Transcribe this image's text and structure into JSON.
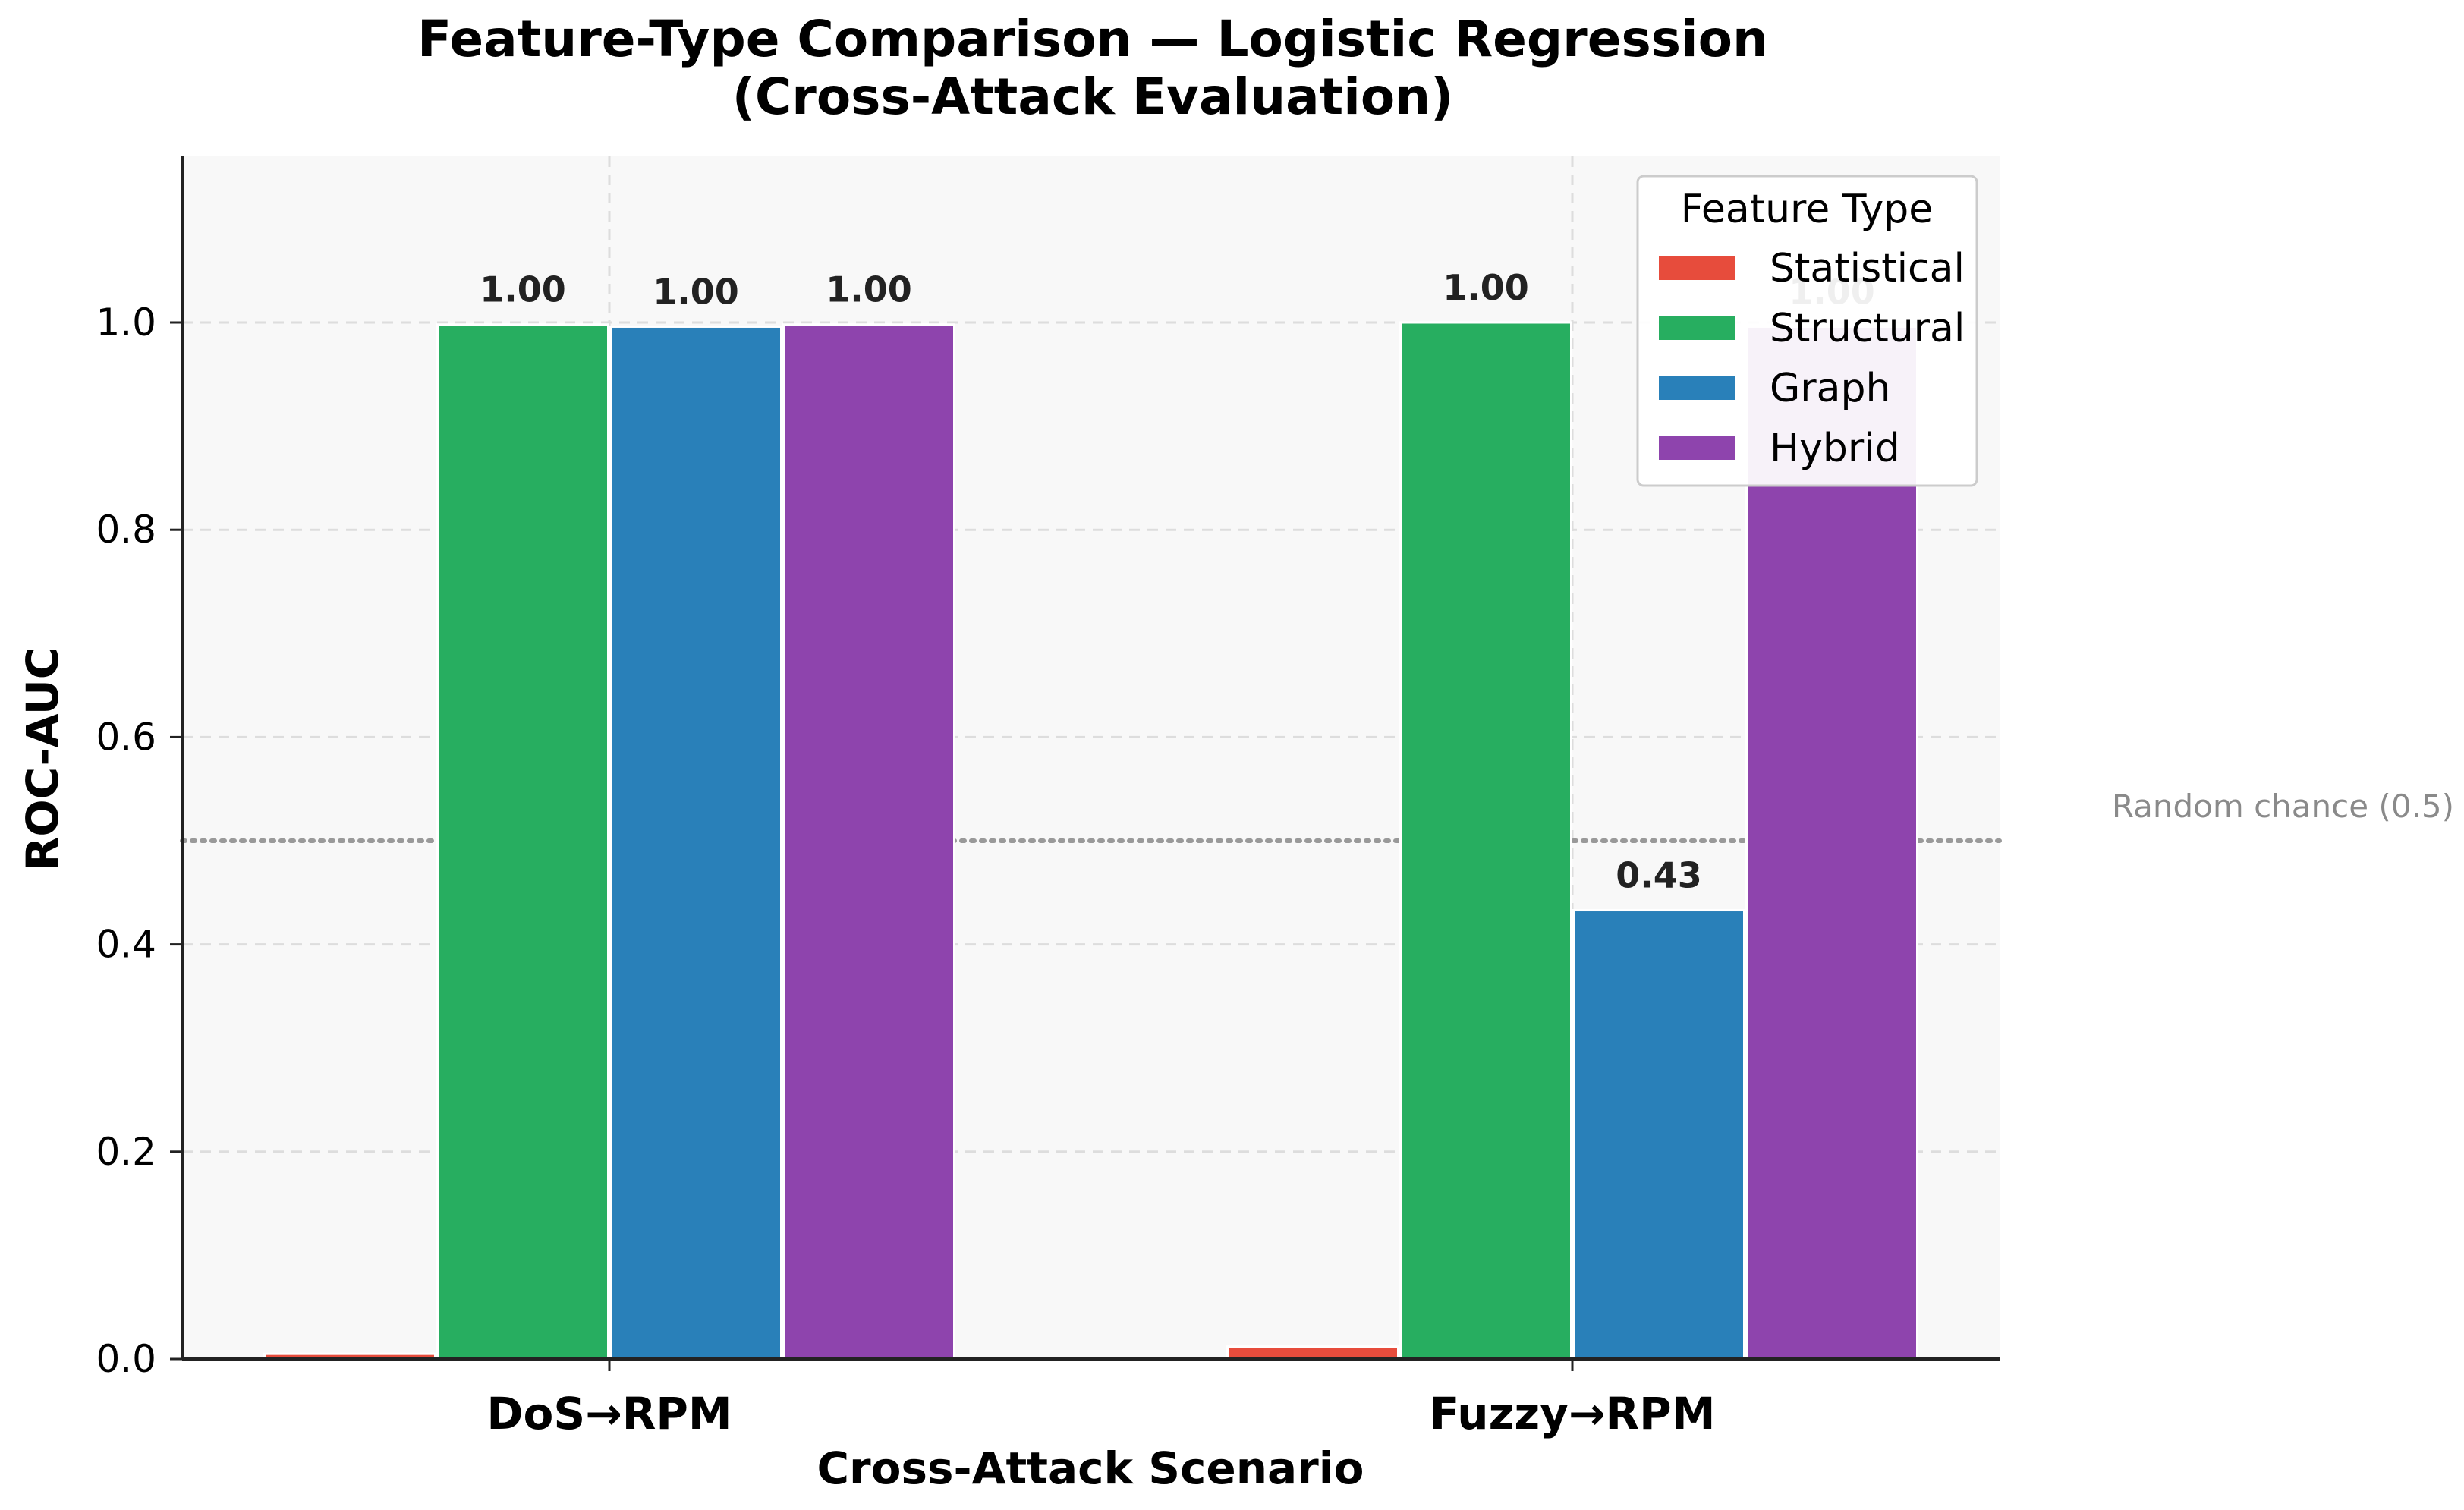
{
  "chart_data": {
    "type": "bar",
    "title": [
      "Feature-Type Comparison — Logistic Regression",
      "(Cross-Attack Evaluation)"
    ],
    "xlabel": "Cross-Attack Scenario",
    "ylabel": "ROC-AUC",
    "categories": [
      "DoS→RPM",
      "Fuzzy→RPM"
    ],
    "ylim": [
      0,
      1.15
    ],
    "yticks": [
      0.0,
      0.2,
      0.4,
      0.6,
      0.8,
      1.0
    ],
    "ytick_labels": [
      "0.0",
      "0.2",
      "0.4",
      "0.6",
      "0.8",
      "1.0"
    ],
    "grid": true,
    "legend": {
      "title": "Feature Type",
      "placement": "top-right"
    },
    "series": [
      {
        "name": "Statistical",
        "color": "#e74c3c",
        "values": [
          0.005,
          0.012
        ],
        "labels": [
          "",
          ""
        ]
      },
      {
        "name": "Structural",
        "color": "#27ae60",
        "values": [
          0.998,
          1.0
        ],
        "labels": [
          "1.00",
          "1.00"
        ]
      },
      {
        "name": "Graph",
        "color": "#2980b9",
        "values": [
          0.996,
          0.433
        ],
        "labels": [
          "1.00",
          "0.43"
        ]
      },
      {
        "name": "Hybrid",
        "color": "#8e44ad",
        "values": [
          0.998,
          0.996
        ],
        "labels": [
          "1.00",
          "1.00"
        ]
      }
    ],
    "reference_line": {
      "value": 0.5,
      "label": "Random chance (0.5)",
      "color": "#999999"
    }
  }
}
